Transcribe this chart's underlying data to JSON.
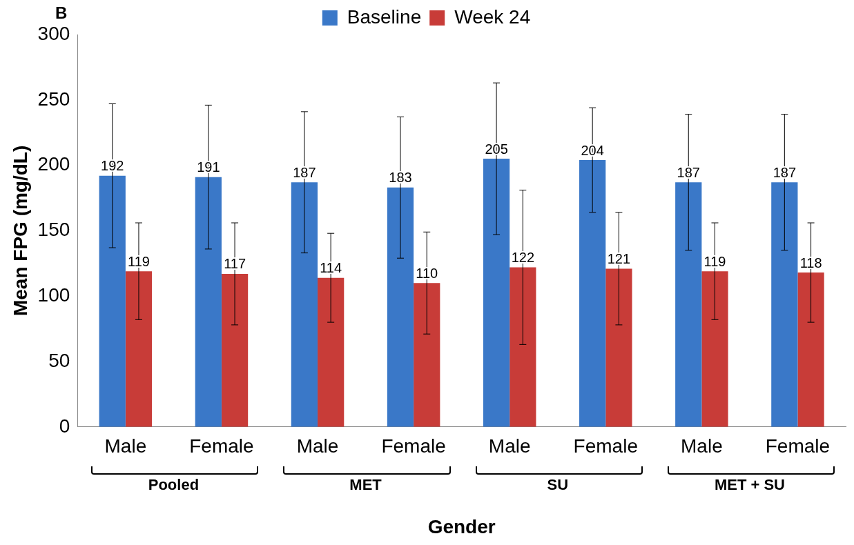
{
  "chart_data": {
    "type": "bar",
    "title": "B",
    "xlabel": "Gender",
    "ylabel": "Mean FPG (mg/dL)",
    "categories": [
      "Male",
      "Female",
      "Male",
      "Female",
      "Male",
      "Female",
      "Male",
      "Female"
    ],
    "series": [
      {
        "name": "Baseline",
        "color": "#3a78c8",
        "values": [
          192,
          191,
          187,
          183,
          205,
          204,
          187,
          187
        ],
        "errors": [
          55,
          55,
          54,
          54,
          58,
          40,
          52,
          52
        ]
      },
      {
        "name": "Week 24",
        "color": "#c83c38",
        "values": [
          119,
          117,
          114,
          110,
          122,
          121,
          119,
          118
        ],
        "errors": [
          37,
          39,
          34,
          39,
          59,
          43,
          37,
          38
        ]
      }
    ],
    "annotations": [
      "Pooled",
      "MET",
      "SU",
      "MET + SU"
    ],
    "ylim": [
      0,
      300
    ],
    "yticks": [
      0,
      50,
      100,
      150,
      200,
      250,
      300
    ],
    "grid": false,
    "legend": "top",
    "data_labels": true
  }
}
